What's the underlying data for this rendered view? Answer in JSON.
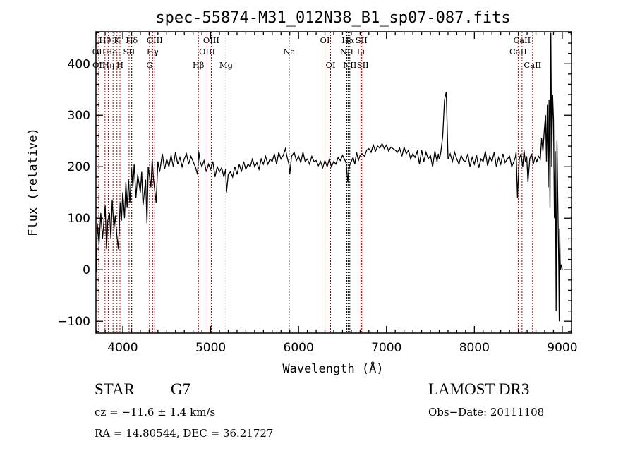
{
  "chart_data": {
    "type": "line",
    "title": "spec-55874-M31_012N38_B1_sp07-087.fits",
    "xlabel": "Wavelength (Å)",
    "ylabel": "Flux (relative)",
    "xlim": [
      3695,
      9105
    ],
    "ylim": [
      -123,
      462
    ],
    "xticks": [
      4000,
      5000,
      6000,
      7000,
      8000,
      9000
    ],
    "yticks": [
      -100,
      0,
      100,
      200,
      300,
      400
    ],
    "grid": false,
    "series": [
      {
        "name": "spectrum",
        "x": [
          3700,
          3710,
          3730,
          3750,
          3770,
          3800,
          3815,
          3830,
          3850,
          3865,
          3880,
          3900,
          3915,
          3930,
          3950,
          3960,
          3970,
          3985,
          4000,
          4020,
          4035,
          4050,
          4065,
          4080,
          4100,
          4115,
          4130,
          4150,
          4170,
          4200,
          4215,
          4230,
          4260,
          4275,
          4290,
          4320,
          4335,
          4350,
          4380,
          4400,
          4420,
          4450,
          4475,
          4500,
          4525,
          4550,
          4575,
          4600,
          4625,
          4650,
          4675,
          4700,
          4725,
          4750,
          4775,
          4800,
          4825,
          4850,
          4865,
          4880,
          4900,
          4925,
          4950,
          4975,
          5000,
          5025,
          5050,
          5075,
          5100,
          5125,
          5150,
          5170,
          5180,
          5200,
          5225,
          5250,
          5275,
          5300,
          5325,
          5350,
          5375,
          5400,
          5425,
          5450,
          5475,
          5500,
          5525,
          5550,
          5575,
          5600,
          5625,
          5650,
          5675,
          5700,
          5725,
          5750,
          5775,
          5800,
          5825,
          5850,
          5870,
          5890,
          5900,
          5920,
          5950,
          5975,
          6000,
          6025,
          6050,
          6075,
          6100,
          6125,
          6150,
          6175,
          6200,
          6225,
          6250,
          6275,
          6300,
          6325,
          6350,
          6375,
          6400,
          6425,
          6450,
          6475,
          6500,
          6520,
          6540,
          6560,
          6575,
          6600,
          6620,
          6640,
          6660,
          6680,
          6700,
          6725,
          6750,
          6775,
          6800,
          6825,
          6850,
          6875,
          6900,
          6925,
          6950,
          6975,
          7000,
          7025,
          7050,
          7075,
          7100,
          7125,
          7150,
          7175,
          7200,
          7225,
          7250,
          7275,
          7300,
          7325,
          7350,
          7375,
          7400,
          7425,
          7450,
          7475,
          7500,
          7525,
          7550,
          7575,
          7590,
          7600,
          7610,
          7620,
          7640,
          7660,
          7680,
          7700,
          7725,
          7750,
          7775,
          7800,
          7825,
          7850,
          7875,
          7900,
          7925,
          7950,
          7975,
          8000,
          8025,
          8050,
          8075,
          8100,
          8125,
          8150,
          8175,
          8200,
          8225,
          8250,
          8275,
          8300,
          8325,
          8350,
          8375,
          8400,
          8425,
          8450,
          8465,
          8475,
          8490,
          8510,
          8530,
          8550,
          8565,
          8580,
          8595,
          8610,
          8630,
          8650,
          8670,
          8690,
          8710,
          8730,
          8750,
          8765,
          8780,
          8795,
          8810,
          8820,
          8830,
          8840,
          8850,
          8860,
          8870,
          8880,
          8890,
          8900,
          8910,
          8920,
          8930,
          8940,
          8950,
          8960,
          8965,
          8970,
          8975,
          8980,
          8990,
          9000
        ],
        "y": [
          -5,
          90,
          50,
          110,
          60,
          125,
          40,
          95,
          110,
          60,
          135,
          80,
          105,
          70,
          40,
          80,
          130,
          95,
          150,
          100,
          170,
          120,
          175,
          130,
          195,
          160,
          205,
          140,
          185,
          150,
          190,
          125,
          175,
          90,
          200,
          160,
          215,
          175,
          130,
          210,
          190,
          225,
          195,
          215,
          200,
          222,
          200,
          228,
          205,
          218,
          200,
          215,
          225,
          205,
          220,
          210,
          200,
          185,
          228,
          210,
          200,
          212,
          190,
          205,
          195,
          210,
          180,
          200,
          190,
          198,
          180,
          195,
          150,
          185,
          190,
          180,
          200,
          185,
          205,
          190,
          210,
          195,
          205,
          200,
          215,
          200,
          208,
          195,
          215,
          205,
          220,
          205,
          215,
          210,
          225,
          205,
          228,
          215,
          222,
          235,
          218,
          205,
          185,
          220,
          228,
          212,
          220,
          208,
          228,
          210,
          215,
          205,
          220,
          210,
          212,
          202,
          210,
          198,
          212,
          200,
          215,
          200,
          210,
          205,
          218,
          212,
          222,
          215,
          208,
          170,
          200,
          210,
          218,
          205,
          228,
          212,
          222,
          225,
          220,
          232,
          235,
          228,
          242,
          230,
          240,
          236,
          245,
          235,
          242,
          230,
          238,
          235,
          232,
          228,
          236,
          220,
          238,
          225,
          232,
          215,
          225,
          218,
          230,
          205,
          232,
          210,
          228,
          215,
          222,
          200,
          230,
          210,
          225,
          215,
          220,
          230,
          260,
          330,
          345,
          215,
          225,
          210,
          228,
          215,
          205,
          222,
          212,
          210,
          225,
          200,
          218,
          205,
          222,
          198,
          215,
          210,
          230,
          202,
          220,
          210,
          228,
          200,
          218,
          205,
          225,
          208,
          215,
          220,
          200,
          210,
          218,
          228,
          140,
          215,
          225,
          200,
          232,
          210,
          220,
          170,
          215,
          225,
          205,
          218,
          210,
          220,
          215,
          255,
          230,
          270,
          300,
          210,
          320,
          160,
          330,
          120,
          460,
          200,
          340,
          290,
          100,
          230,
          -80,
          250,
          120,
          10,
          -100,
          80,
          20,
          0,
          10,
          0
        ]
      }
    ],
    "line_labels": [
      {
        "label": "Hθ",
        "wave": 3798,
        "row": 0,
        "color": "#b00000"
      },
      {
        "label": "K",
        "wave": 3934,
        "row": 0,
        "color": "#b00000"
      },
      {
        "label": "Hδ",
        "wave": 4102,
        "row": 0,
        "color": "#000000"
      },
      {
        "label": "OIII",
        "wave": 4363,
        "row": 0,
        "color": "#b00000"
      },
      {
        "label": "OIII",
        "wave": 5007,
        "row": 0,
        "color": "#b00000"
      },
      {
        "label": "OI",
        "wave": 6300,
        "row": 0,
        "color": "#b00000"
      },
      {
        "label": "Hα",
        "wave": 6563,
        "row": 0,
        "color": "#000000"
      },
      {
        "label": "SII",
        "wave": 6716,
        "row": 0,
        "color": "#b00000"
      },
      {
        "label": "CaII",
        "wave": 8542,
        "row": 0,
        "color": "#b00000"
      },
      {
        "label": "OII",
        "wave": 3727,
        "row": 1,
        "color": "#b00000"
      },
      {
        "label": "HeI",
        "wave": 3889,
        "row": 1,
        "color": "#b00000"
      },
      {
        "label": "SII",
        "wave": 4072,
        "row": 1,
        "color": "#b00000"
      },
      {
        "label": "Hγ",
        "wave": 4340,
        "row": 1,
        "color": "#b00000"
      },
      {
        "label": "OIII",
        "wave": 4959,
        "row": 1,
        "color": "#b00000"
      },
      {
        "label": "Na",
        "wave": 5893,
        "row": 1,
        "color": "#000000"
      },
      {
        "label": "NII",
        "wave": 6548,
        "row": 1,
        "color": "#000000"
      },
      {
        "label": "Li",
        "wave": 6708,
        "row": 1,
        "color": "#b00000"
      },
      {
        "label": "CaII",
        "wave": 8498,
        "row": 1,
        "color": "#b00000"
      },
      {
        "label": "OII",
        "wave": 3729,
        "row": 2,
        "color": "#b00000"
      },
      {
        "label": "Hη",
        "wave": 3835,
        "row": 2,
        "color": "#b00000"
      },
      {
        "label": "H",
        "wave": 3968,
        "row": 2,
        "color": "#b00000"
      },
      {
        "label": "G",
        "wave": 4304,
        "row": 2,
        "color": "#b00000"
      },
      {
        "label": "Hβ",
        "wave": 4861,
        "row": 2,
        "color": "#b00000"
      },
      {
        "label": "Mg",
        "wave": 5175,
        "row": 2,
        "color": "#000000"
      },
      {
        "label": "OI",
        "wave": 6364,
        "row": 2,
        "color": "#b00000"
      },
      {
        "label": "NII",
        "wave": 6583,
        "row": 2,
        "color": "#000000"
      },
      {
        "label": "SII",
        "wave": 6731,
        "row": 2,
        "color": "#b00000"
      },
      {
        "label": "CaII",
        "wave": 8662,
        "row": 2,
        "color": "#b00000"
      }
    ]
  },
  "info": {
    "class": "STAR",
    "subclass": "G7",
    "survey": "LAMOST DR3",
    "cz": "cz = −11.6 ± 1.4 km/s",
    "obs_date": "Obs−Date: 20111108",
    "coords": "RA =  14.80544, DEC =  36.21727"
  }
}
